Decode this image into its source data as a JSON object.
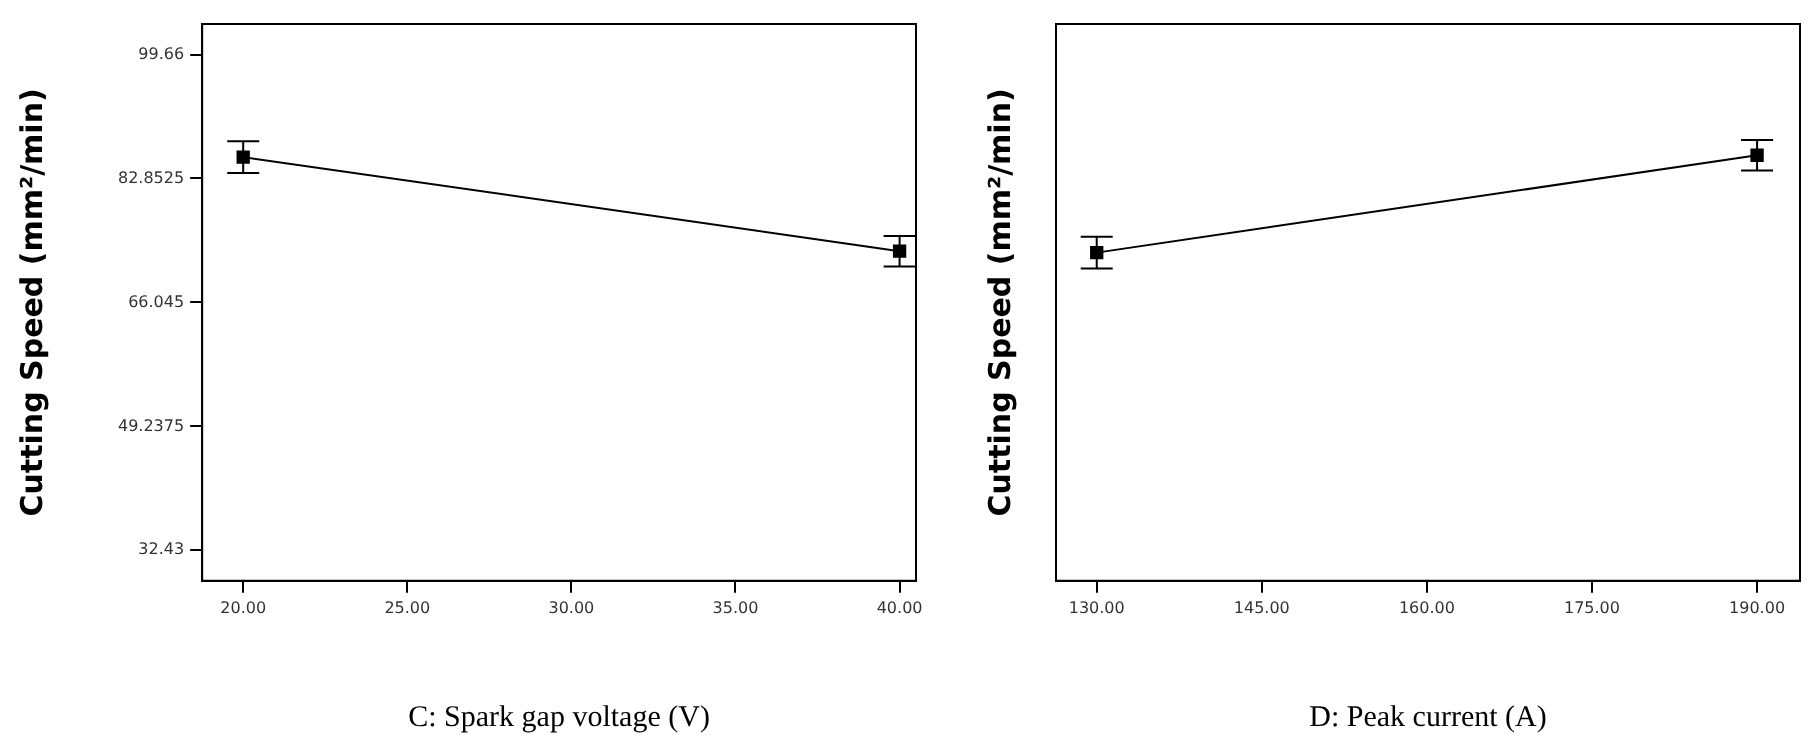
{
  "chart_data": [
    {
      "type": "line",
      "xlabel": "C: Spark gap voltage (V)",
      "ylabel": "Cutting Speed (mm²/min)",
      "x": [
        20,
        40
      ],
      "series": [
        {
          "color": "#000000",
          "values": [
            85.75,
            73.0
          ],
          "errors": [
            2.16,
            2.07
          ]
        }
      ],
      "xlim": [
        18.75,
        40.5
      ],
      "xticks": [
        {
          "value": 20,
          "label": "20.00"
        },
        {
          "value": 25,
          "label": "25.00"
        },
        {
          "value": 30,
          "label": "30.00"
        },
        {
          "value": 35,
          "label": "35.00"
        },
        {
          "value": 40,
          "label": "40.00"
        }
      ],
      "ylim": [
        28.3,
        103.8
      ],
      "yticks": [
        32.43,
        49.2375,
        66.045,
        82.8525,
        99.66
      ],
      "grid": false,
      "legend": false,
      "marker": "square",
      "line_style": "solid"
    },
    {
      "type": "line",
      "xlabel": "D: Peak current (A)",
      "ylabel": "Cutting Speed (mm²/min)",
      "x": [
        130,
        190
      ],
      "series": [
        {
          "color": "#000000",
          "values": [
            72.8,
            86.0
          ],
          "errors": [
            2.16,
            2.07
          ]
        }
      ],
      "xlim": [
        126.3,
        193.9
      ],
      "xticks": [
        {
          "value": 130,
          "label": "130.00"
        },
        {
          "value": 145,
          "label": "145.00"
        },
        {
          "value": 160,
          "label": "160.00"
        },
        {
          "value": 175,
          "label": "175.00"
        },
        {
          "value": 190,
          "label": "190.00"
        }
      ],
      "ylim": [
        28.3,
        103.8
      ],
      "tick_labels": "x",
      "grid": false,
      "legend": false,
      "marker": "square",
      "line_style": "solid"
    }
  ]
}
